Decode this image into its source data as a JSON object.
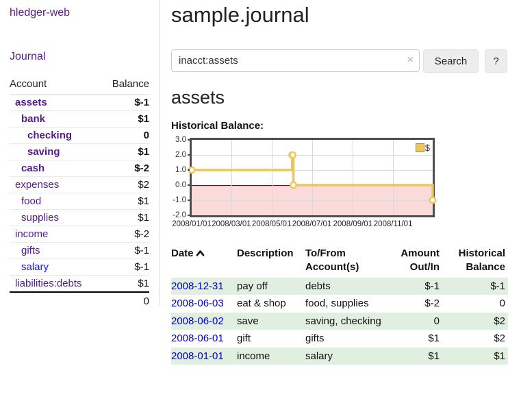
{
  "app": {
    "brand": "hledger-web",
    "nav_journal": "Journal"
  },
  "colors": {
    "link_purple": "#551a8b",
    "link_blue": "#1414ee",
    "date_blue": "#0000d0",
    "negative_strong": "#8f1414",
    "negative_soft": "#c98585",
    "negative_table": "#9b2626",
    "stripe_green": "#e1efe0",
    "chart_line_gold": "#e9c758",
    "chart_negative_pink": "#fbdada",
    "chart_zero_line": "#8b0000",
    "chart_border": "#4d4d4d"
  },
  "sidebar": {
    "header": {
      "account": "Account",
      "balance": "Balance"
    },
    "accounts": [
      {
        "name": "assets",
        "balance": "$-1"
      },
      {
        "name": "bank",
        "balance": "$1"
      },
      {
        "name": "checking",
        "balance": "0"
      },
      {
        "name": "saving",
        "balance": "$1"
      },
      {
        "name": "cash",
        "balance": "$-2"
      },
      {
        "name": "expenses",
        "balance": "$2"
      },
      {
        "name": "food",
        "balance": "$1"
      },
      {
        "name": "supplies",
        "balance": "$1"
      },
      {
        "name": "income",
        "balance": "$-2"
      },
      {
        "name": "gifts",
        "balance": "$-1"
      },
      {
        "name": "salary",
        "balance": "$-1"
      },
      {
        "name": "liabilities:debts",
        "balance": "$1"
      }
    ],
    "total": "0"
  },
  "header": {
    "title": "sample.journal"
  },
  "search": {
    "value": "inacct:assets",
    "clear_icon": "×",
    "search_button": "Search",
    "help_button": "?"
  },
  "account_page": {
    "heading": "assets",
    "chart_label": "Historical Balance:"
  },
  "chart_data": {
    "type": "line",
    "step": true,
    "title": "Historical Balance",
    "legend": "$",
    "legend_position": "top-right",
    "grid": true,
    "ylim": [
      -2.0,
      3.0
    ],
    "yticks": [
      "3.0",
      "2.0",
      "1.0",
      "0.0",
      "-1.0",
      "-2.0"
    ],
    "xrange": [
      "2008-01-01",
      "2008-12-31"
    ],
    "xticks": [
      "2008/01/01",
      "2008/03/01",
      "2008/05/01",
      "2008/07/01",
      "2008/09/01",
      "2008/11/01"
    ],
    "series": [
      {
        "name": "$",
        "points": [
          {
            "x": "2008-01-01",
            "y": 1
          },
          {
            "x": "2008-06-01",
            "y": 2
          },
          {
            "x": "2008-06-02",
            "y": 2
          },
          {
            "x": "2008-06-03",
            "y": 0
          },
          {
            "x": "2008-12-31",
            "y": -1
          }
        ]
      }
    ]
  },
  "register": {
    "columns": {
      "date": "Date",
      "description": "Description",
      "accounts_line1": "To/From",
      "accounts_line2": "Account(s)",
      "amount_line1": "Amount",
      "amount_line2": "Out/In",
      "balance_line1": "Historical",
      "balance_line2": "Balance"
    },
    "rows": [
      {
        "date": "2008-12-31",
        "description": "pay off",
        "accounts": "debts",
        "amount": "$-1",
        "balance": "$-1"
      },
      {
        "date": "2008-06-03",
        "description": "eat & shop",
        "accounts": "food, supplies",
        "amount": "$-2",
        "balance": "0"
      },
      {
        "date": "2008-06-02",
        "description": "save",
        "accounts": "saving, checking",
        "amount": "0",
        "balance": "$2"
      },
      {
        "date": "2008-06-01",
        "description": "gift",
        "accounts": "gifts",
        "amount": "$1",
        "balance": "$2"
      },
      {
        "date": "2008-01-01",
        "description": "income",
        "accounts": "salary",
        "amount": "$1",
        "balance": "$1"
      }
    ]
  }
}
